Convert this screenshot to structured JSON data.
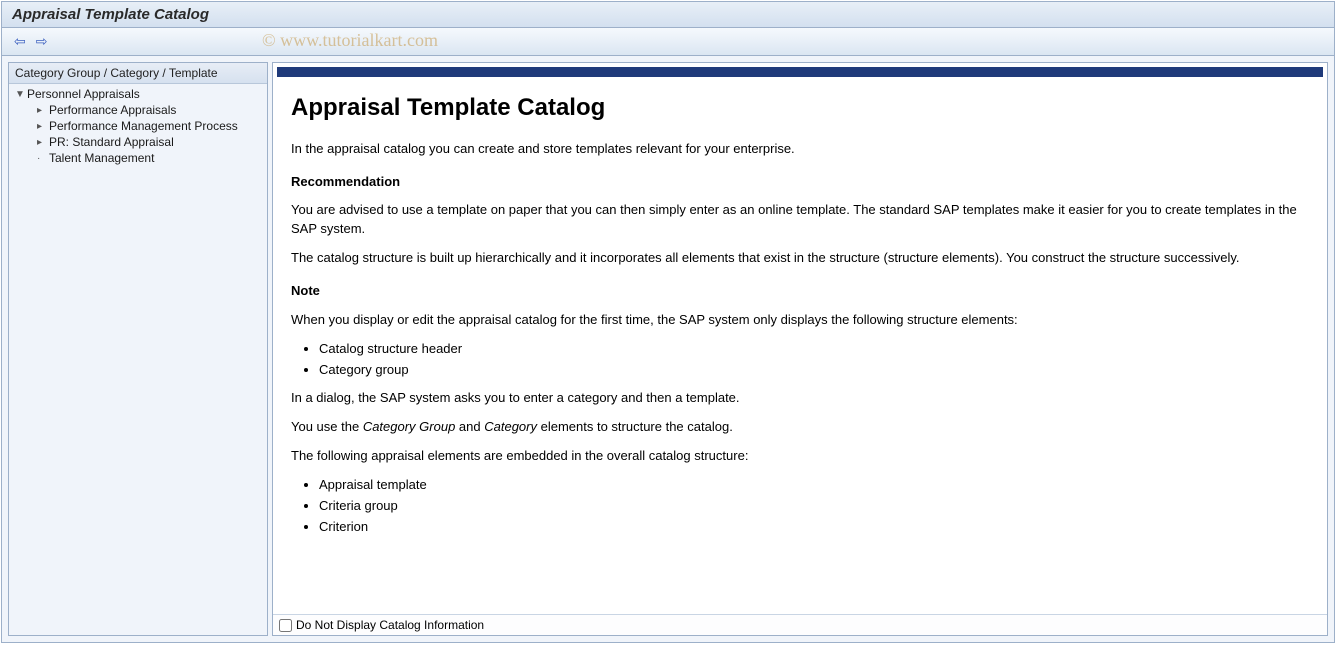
{
  "window": {
    "title": "Appraisal Template Catalog"
  },
  "watermark": "© www.tutorialkart.com",
  "sidebar": {
    "header": "Category Group / Category / Template",
    "root": {
      "label": "Personnel Appraisals",
      "expanded": true,
      "children": [
        {
          "label": "Performance Appraisals",
          "hasChildren": true
        },
        {
          "label": "Performance Management Process",
          "hasChildren": true
        },
        {
          "label": "PR: Standard Appraisal",
          "hasChildren": true
        },
        {
          "label": "Talent Management",
          "hasChildren": false
        }
      ]
    }
  },
  "doc": {
    "accent_color": "#1f3a7a",
    "heading": "Appraisal Template Catalog",
    "p_intro": "In the appraisal catalog you can create and store templates relevant for your enterprise.",
    "subhead_reco": "Recommendation",
    "p_reco": "You are advised to use a template on paper that you can then simply enter as an online template. The standard SAP templates make it easier for you to create templates in the SAP system.",
    "p_structure": "The catalog structure is built up hierarchically and it incorporates all elements that exist in the structure (structure elements). You construct the structure successively.",
    "subhead_note": "Note",
    "p_note_intro": "When you display or edit the appraisal catalog for the first time, the SAP system only displays the following structure elements:",
    "note_list": [
      "Catalog structure header",
      "Category group"
    ],
    "p_dialog": "In a dialog, the SAP system asks you to enter a category and then a template.",
    "p_use_prefix": "You use the ",
    "em_catgroup": "Category Group",
    "p_use_mid": " and ",
    "em_cat": "Category",
    "p_use_suffix": " elements to structure the catalog.",
    "p_embedded": "The following appraisal elements are embedded in the overall catalog structure:",
    "embedded_list": [
      "Appraisal template",
      "Criteria group",
      "Criterion"
    ]
  },
  "footer": {
    "checkbox_label": "Do Not Display Catalog Information",
    "checked": false
  }
}
